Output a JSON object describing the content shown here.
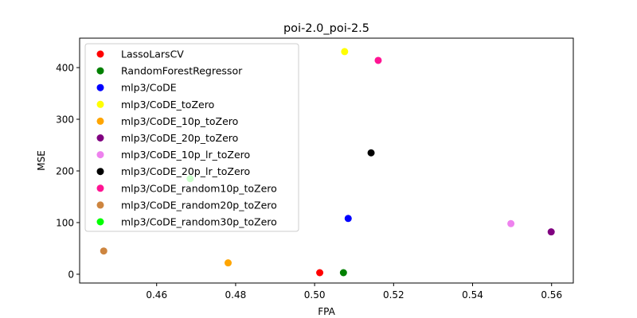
{
  "chart_data": {
    "type": "scatter",
    "title": "poi-2.0_poi-2.5",
    "xlabel": "FPA",
    "ylabel": "MSE",
    "xlim": [
      0.4405,
      0.5655
    ],
    "ylim": [
      -17,
      457
    ],
    "xticks": [
      0.46,
      0.48,
      0.5,
      0.52,
      0.54,
      0.56
    ],
    "xtick_labels": [
      "0.46",
      "0.48",
      "0.50",
      "0.52",
      "0.54",
      "0.56"
    ],
    "yticks": [
      0,
      100,
      200,
      300,
      400
    ],
    "ytick_labels": [
      "0",
      "100",
      "200",
      "300",
      "400"
    ],
    "grid": false,
    "legend_position": "upper-left",
    "series": [
      {
        "name": "LassoLarsCV",
        "color": "#ff0000",
        "x": 0.5013,
        "y": 3
      },
      {
        "name": "RandomForestRegressor",
        "color": "#008000",
        "x": 0.5073,
        "y": 3
      },
      {
        "name": "mlp3/CoDE",
        "color": "#0000ff",
        "x": 0.5085,
        "y": 108
      },
      {
        "name": "mlp3/CoDE_toZero",
        "color": "#ffff00",
        "x": 0.5076,
        "y": 431
      },
      {
        "name": "mlp3/CoDE_10p_toZero",
        "color": "#ffa500",
        "x": 0.4781,
        "y": 22
      },
      {
        "name": "mlp3/CoDE_20p_toZero",
        "color": "#800080",
        "x": 0.5599,
        "y": 82
      },
      {
        "name": "mlp3/CoDE_10p_lr_toZero",
        "color": "#ee82ee",
        "x": 0.5497,
        "y": 98
      },
      {
        "name": "mlp3/CoDE_20p_lr_toZero",
        "color": "#000000",
        "x": 0.5143,
        "y": 235
      },
      {
        "name": "mlp3/CoDE_random10p_toZero",
        "color": "#ff1493",
        "x": 0.5161,
        "y": 414
      },
      {
        "name": "mlp3/CoDE_random20p_toZero",
        "color": "#cd853f",
        "x": 0.4466,
        "y": 45
      },
      {
        "name": "mlp3/CoDE_random30p_toZero",
        "color": "#00ff00",
        "x": 0.4685,
        "y": 185
      }
    ]
  }
}
